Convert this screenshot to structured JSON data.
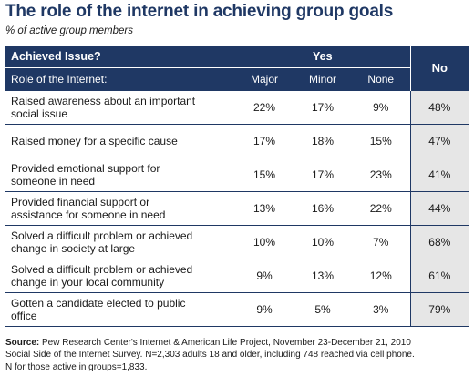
{
  "title": "The role of the internet in achieving group goals",
  "subtitle": "% of active group members",
  "header": {
    "achieved_issue": "Achieved Issue?",
    "yes": "Yes",
    "no": "No",
    "role": "Role of the Internet:",
    "major": "Major",
    "minor": "Minor",
    "none": "None"
  },
  "rows": [
    {
      "label_line1": "Raised awareness about an important",
      "label_line2": "social issue",
      "major": "22%",
      "minor": "17%",
      "none": "9%",
      "no": "48%"
    },
    {
      "label_line1": "Raised money for a specific cause",
      "label_line2": "",
      "major": "17%",
      "minor": "18%",
      "none": "15%",
      "no": "47%"
    },
    {
      "label_line1": "Provided emotional support for",
      "label_line2": "someone in need",
      "major": "15%",
      "minor": "17%",
      "none": "23%",
      "no": "41%"
    },
    {
      "label_line1": "Provided financial support or",
      "label_line2": "assistance for someone in need",
      "major": "13%",
      "minor": "16%",
      "none": "22%",
      "no": "44%"
    },
    {
      "label_line1": "Solved a difficult problem or achieved",
      "label_line2": "change in society at large",
      "major": "10%",
      "minor": "10%",
      "none": "7%",
      "no": "68%"
    },
    {
      "label_line1": "Solved a difficult problem or achieved",
      "label_line2": "change in your local community",
      "major": "9%",
      "minor": "13%",
      "none": "12%",
      "no": "61%"
    },
    {
      "label_line1": "Gotten a candidate elected to public",
      "label_line2": "office",
      "major": "9%",
      "minor": "5%",
      "none": "3%",
      "no": "79%"
    }
  ],
  "source": {
    "label": "Source:",
    "line1": " Pew Research Center's Internet & American Life Project, November 23-December 21, 2010",
    "line2": "Social Side of the Internet Survey. N=2,303 adults 18 and older, including 748 reached via cell phone.",
    "line3": "N for those active in groups=1,833."
  },
  "colors": {
    "header_bg": "#1f3864",
    "title": "#1f3864",
    "no_col_bg": "#e6e6e6"
  }
}
